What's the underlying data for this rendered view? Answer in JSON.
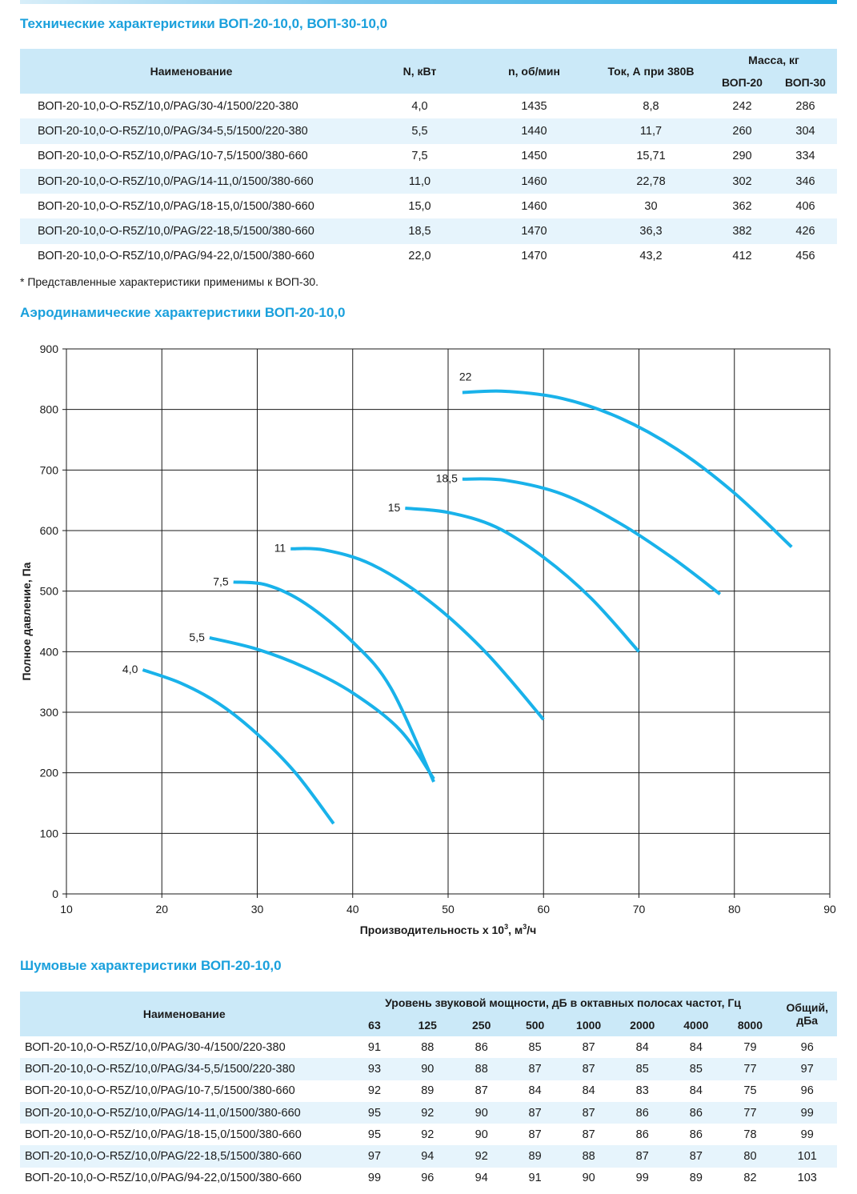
{
  "tech": {
    "title": "Технические характеристики ВОП-20-10,0, ВОП-30-10,0",
    "headers": {
      "name": "Наименование",
      "power": "N, кВт",
      "rpm": "n, об/мин",
      "current": "Ток, А при 380В",
      "mass": "Масса, кг",
      "mass_20": "ВОП-20",
      "mass_30": "ВОП-30"
    },
    "rows": [
      [
        "ВОП-20-10,0-O-R5Z/10,0/PAG/30-4/1500/220-380",
        "4,0",
        "1435",
        "8,8",
        "242",
        "286"
      ],
      [
        "ВОП-20-10,0-O-R5Z/10,0/PAG/34-5,5/1500/220-380",
        "5,5",
        "1440",
        "11,7",
        "260",
        "304"
      ],
      [
        "ВОП-20-10,0-O-R5Z/10,0/PAG/10-7,5/1500/380-660",
        "7,5",
        "1450",
        "15,71",
        "290",
        "334"
      ],
      [
        "ВОП-20-10,0-O-R5Z/10,0/PAG/14-11,0/1500/380-660",
        "11,0",
        "1460",
        "22,78",
        "302",
        "346"
      ],
      [
        "ВОП-20-10,0-O-R5Z/10,0/PAG/18-15,0/1500/380-660",
        "15,0",
        "1460",
        "30",
        "362",
        "406"
      ],
      [
        "ВОП-20-10,0-O-R5Z/10,0/PAG/22-18,5/1500/380-660",
        "18,5",
        "1470",
        "36,3",
        "382",
        "426"
      ],
      [
        "ВОП-20-10,0-O-R5Z/10,0/PAG/94-22,0/1500/380-660",
        "22,0",
        "1470",
        "43,2",
        "412",
        "456"
      ]
    ],
    "note": "* Представленные характеристики применимы к ВОП-30."
  },
  "aero": {
    "title": "Аэродинамические характеристики ВОП-20-10,0"
  },
  "chart_data": {
    "type": "line",
    "title": "Аэродинамические характеристики ВОП-20-10,0",
    "xlabel_base": "Производительность x 10",
    "xlabel_sup1": "3",
    "xlabel_mid": ", м",
    "xlabel_sup2": "3",
    "xlabel_end": "/ч",
    "ylabel": "Полное давление, Па",
    "xlim": [
      10,
      90
    ],
    "ylim": [
      0,
      900
    ],
    "x_ticks": [
      10,
      20,
      30,
      40,
      50,
      60,
      70,
      80,
      90
    ],
    "y_ticks": [
      0,
      100,
      200,
      300,
      400,
      500,
      600,
      700,
      800,
      900
    ],
    "grid": true,
    "line_color": "#19b2ea",
    "series": [
      {
        "name": "4,0",
        "points": [
          [
            18,
            370
          ],
          [
            22,
            348
          ],
          [
            26,
            314
          ],
          [
            30,
            264
          ],
          [
            34,
            200
          ],
          [
            38,
            116
          ]
        ]
      },
      {
        "name": "5,5",
        "points": [
          [
            25,
            423
          ],
          [
            30,
            404
          ],
          [
            35,
            374
          ],
          [
            40,
            332
          ],
          [
            45,
            270
          ],
          [
            48.5,
            190
          ]
        ]
      },
      {
        "name": "7,5",
        "points": [
          [
            27.5,
            515
          ],
          [
            31,
            510
          ],
          [
            35,
            480
          ],
          [
            40,
            416
          ],
          [
            44,
            340
          ],
          [
            48.5,
            185
          ]
        ]
      },
      {
        "name": "11",
        "points": [
          [
            33.5,
            570
          ],
          [
            37,
            568
          ],
          [
            42,
            544
          ],
          [
            48,
            484
          ],
          [
            54,
            398
          ],
          [
            60,
            288
          ]
        ]
      },
      {
        "name": "15",
        "points": [
          [
            45.5,
            637
          ],
          [
            50,
            630
          ],
          [
            55,
            606
          ],
          [
            60,
            556
          ],
          [
            65,
            488
          ],
          [
            70,
            400
          ]
        ]
      },
      {
        "name": "18,5",
        "points": [
          [
            51.5,
            685
          ],
          [
            56,
            683
          ],
          [
            62,
            660
          ],
          [
            68,
            612
          ],
          [
            73.5,
            555
          ],
          [
            78.5,
            495
          ]
        ]
      },
      {
        "name": "22",
        "points": [
          [
            51.5,
            828
          ],
          [
            56,
            830
          ],
          [
            62,
            818
          ],
          [
            68,
            786
          ],
          [
            74,
            734
          ],
          [
            80,
            662
          ],
          [
            86,
            573
          ]
        ]
      }
    ]
  },
  "noise": {
    "title": "Шумовые характеристики ВОП-20-10,0",
    "headers": {
      "name": "Наименование",
      "group": "Уровень звуковой мощности, дБ в октавных полосах частот, Гц",
      "total_line1": "Общий,",
      "total_line2": "дБа",
      "freqs": [
        "63",
        "125",
        "250",
        "500",
        "1000",
        "2000",
        "4000",
        "8000"
      ]
    },
    "rows": [
      [
        "ВОП-20-10,0-O-R5Z/10,0/PAG/30-4/1500/220-380",
        "91",
        "88",
        "86",
        "85",
        "87",
        "84",
        "84",
        "79",
        "96"
      ],
      [
        "ВОП-20-10,0-O-R5Z/10,0/PAG/34-5,5/1500/220-380",
        "93",
        "90",
        "88",
        "87",
        "87",
        "85",
        "85",
        "77",
        "97"
      ],
      [
        "ВОП-20-10,0-O-R5Z/10,0/PAG/10-7,5/1500/380-660",
        "92",
        "89",
        "87",
        "84",
        "84",
        "83",
        "84",
        "75",
        "96"
      ],
      [
        "ВОП-20-10,0-O-R5Z/10,0/PAG/14-11,0/1500/380-660",
        "95",
        "92",
        "90",
        "87",
        "87",
        "86",
        "86",
        "77",
        "99"
      ],
      [
        "ВОП-20-10,0-O-R5Z/10,0/PAG/18-15,0/1500/380-660",
        "95",
        "92",
        "90",
        "87",
        "87",
        "86",
        "86",
        "78",
        "99"
      ],
      [
        "ВОП-20-10,0-O-R5Z/10,0/PAG/22-18,5/1500/380-660",
        "97",
        "94",
        "92",
        "89",
        "88",
        "87",
        "87",
        "80",
        "101"
      ],
      [
        "ВОП-20-10,0-O-R5Z/10,0/PAG/94-22,0/1500/380-660",
        "99",
        "96",
        "94",
        "91",
        "90",
        "99",
        "89",
        "82",
        "103"
      ]
    ]
  }
}
